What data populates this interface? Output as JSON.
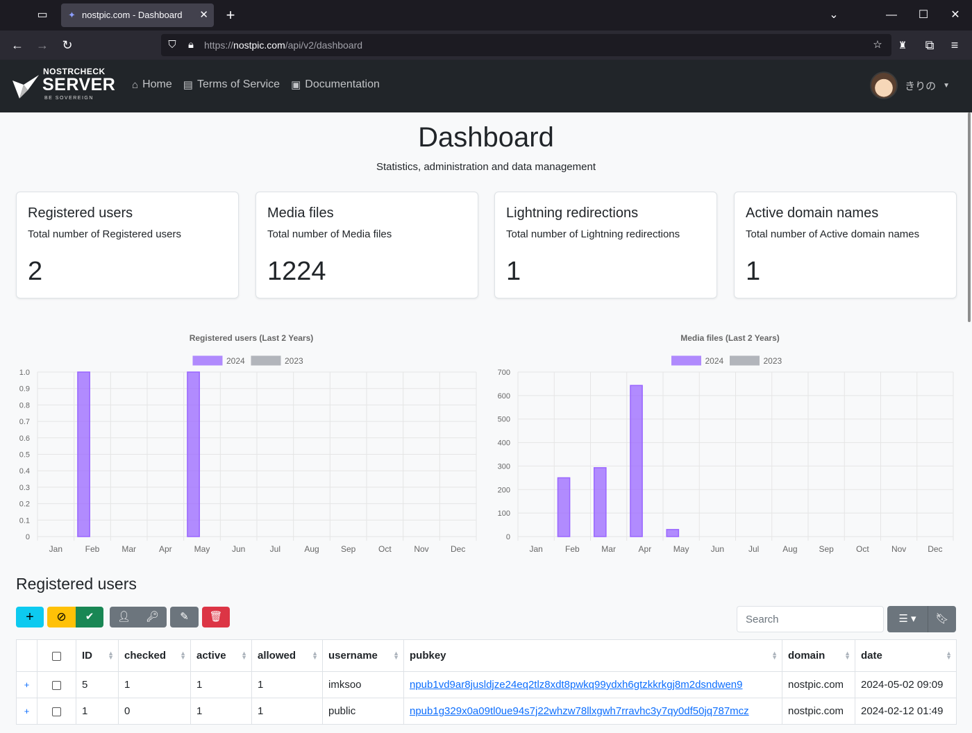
{
  "browser": {
    "tab_title": "nostpic.com - Dashboard",
    "url_prefix": "https://",
    "url_host": "nostpic.com",
    "url_path": "/api/v2/dashboard"
  },
  "site": {
    "logo_line1": "NOSTRCHECK",
    "logo_line2": "SERVER",
    "logo_line3": "BE SOVEREIGN",
    "nav": [
      {
        "label": "Home",
        "icon": "home-icon"
      },
      {
        "label": "Terms of Service",
        "icon": "document-icon"
      },
      {
        "label": "Documentation",
        "icon": "book-icon"
      }
    ],
    "user_name": "きりの"
  },
  "page": {
    "title": "Dashboard",
    "subtitle": "Statistics, administration and data management"
  },
  "cards": [
    {
      "title": "Registered users",
      "text": "Total number of Registered users",
      "value": "2"
    },
    {
      "title": "Media files",
      "text": "Total number of Media files",
      "value": "1224"
    },
    {
      "title": "Lightning redirections",
      "text": "Total number of Lightning redirections",
      "value": "1"
    },
    {
      "title": "Active domain names",
      "text": "Total number of Active domain names",
      "value": "1"
    }
  ],
  "chart_data": [
    {
      "type": "bar",
      "title": "Registered users (Last 2 Years)",
      "categories": [
        "Jan",
        "Feb",
        "Mar",
        "Apr",
        "May",
        "Jun",
        "Jul",
        "Aug",
        "Sep",
        "Oct",
        "Nov",
        "Dec"
      ],
      "series": [
        {
          "name": "2024",
          "color": "#9966ff",
          "values": [
            0,
            1,
            0,
            0,
            1,
            0,
            0,
            0,
            0,
            0,
            0,
            0
          ]
        },
        {
          "name": "2023",
          "color": "#9b9fa6",
          "values": [
            0,
            0,
            0,
            0,
            0,
            0,
            0,
            0,
            0,
            0,
            0,
            0
          ]
        }
      ],
      "ylim": [
        0,
        1.0
      ],
      "yticks": [
        "1.0",
        "0.9",
        "0.8",
        "0.7",
        "0.6",
        "0.5",
        "0.4",
        "0.3",
        "0.2",
        "0.1",
        "0"
      ],
      "legend": "top"
    },
    {
      "type": "bar",
      "title": "Media files (Last 2 Years)",
      "categories": [
        "Jan",
        "Feb",
        "Mar",
        "Apr",
        "May",
        "Jun",
        "Jul",
        "Aug",
        "Sep",
        "Oct",
        "Nov",
        "Dec"
      ],
      "series": [
        {
          "name": "2024",
          "color": "#9966ff",
          "values": [
            0,
            250,
            293,
            643,
            30,
            0,
            0,
            0,
            0,
            0,
            0,
            0
          ]
        },
        {
          "name": "2023",
          "color": "#9b9fa6",
          "values": [
            0,
            0,
            0,
            0,
            0,
            0,
            0,
            0,
            0,
            0,
            0,
            0
          ]
        }
      ],
      "ylim": [
        0,
        700
      ],
      "yticks": [
        "700",
        "600",
        "500",
        "400",
        "300",
        "200",
        "100",
        "0"
      ],
      "legend": "top"
    }
  ],
  "users_section": {
    "title": "Registered users",
    "search_placeholder": "Search",
    "columns": [
      "ID",
      "checked",
      "active",
      "allowed",
      "username",
      "pubkey",
      "domain",
      "date"
    ],
    "rows": [
      {
        "id": "5",
        "checked": "1",
        "active": "1",
        "allowed": "1",
        "username": "imksoo",
        "pubkey": "npub1vd9ar8jusldjze24eq2tlz8xdt8pwkq99ydxh6gtzkkrkgj8m2dsndwen9",
        "domain": "nostpic.com",
        "date": "2024-05-02 09:09"
      },
      {
        "id": "1",
        "checked": "0",
        "active": "1",
        "allowed": "1",
        "username": "public",
        "pubkey": "npub1g329x0a09tl0ue94s7j22whzw78llxgwh7rravhc3y7qy0df50jq787mcz",
        "domain": "nostpic.com",
        "date": "2024-02-12 01:49"
      }
    ]
  }
}
